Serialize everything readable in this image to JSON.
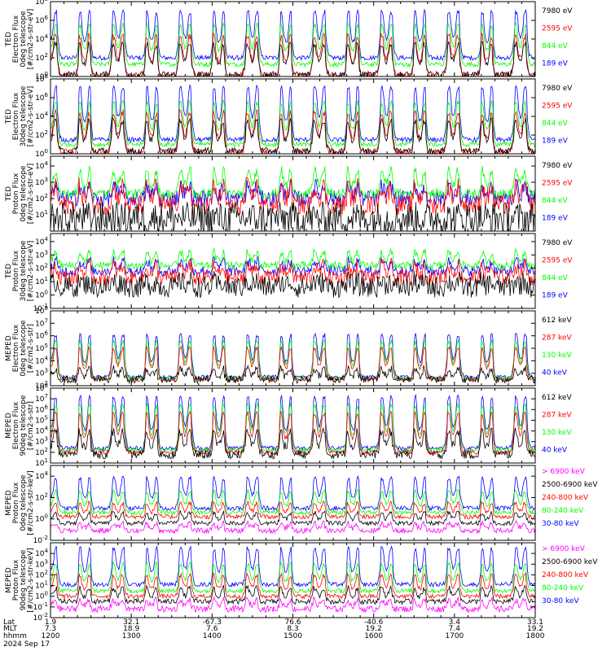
{
  "figure": {
    "date": "2024 Sep 17",
    "footer_rows": [
      {
        "label": "Lat",
        "values": [
          "1.9",
          "32.1",
          "-67.3",
          "76.6",
          "-40.6",
          "3.4",
          "33.1"
        ]
      },
      {
        "label": "MLT",
        "values": [
          "7.3",
          "18.9",
          "7.6",
          "8.3",
          "19.2",
          "7.4",
          "19.2"
        ]
      },
      {
        "label": "hhmm",
        "values": [
          "1200",
          "1300",
          "1400",
          "1500",
          "1600",
          "1700",
          "1800"
        ]
      }
    ]
  },
  "colors": {
    "black": "#000000",
    "blue": "#0000ff",
    "red": "#ff0000",
    "green": "#00ff00",
    "magenta": "#ff00ff"
  },
  "chart_data": [
    {
      "type": "line",
      "ylabel": [
        "TED",
        "Electron Flux",
        "0deg telescope",
        "[#/cm2-s-str-eV]"
      ],
      "log_scale": true,
      "ylim_exp": [
        0,
        8
      ],
      "y_ticks": [
        {
          "exp": 0,
          "label": "10^0"
        },
        {
          "exp": 2,
          "label": "10^2"
        },
        {
          "exp": 4,
          "label": "10^4"
        },
        {
          "exp": 6,
          "label": "10^6"
        },
        {
          "exp": 8,
          "label": "10^8"
        }
      ],
      "x_hours": [
        12,
        18
      ],
      "series": [
        {
          "name": "7980 eV",
          "color": "#000000",
          "base": 0.2,
          "amp": 2.3,
          "noise": 0.35
        },
        {
          "name": "2595 eV",
          "color": "#ff0000",
          "base": 0.1,
          "amp": 3.0,
          "noise": 0.35
        },
        {
          "name": "844 eV",
          "color": "#00ff00",
          "base": 1.3,
          "amp": 3.0,
          "noise": 0.25
        },
        {
          "name": "189 eV",
          "color": "#0000ff",
          "base": 2.0,
          "amp": 3.5,
          "noise": 0.25
        }
      ],
      "legend": [
        "7980 eV",
        "2595 eV",
        "844 eV",
        "189 eV"
      ]
    },
    {
      "type": "line",
      "ylabel": [
        "TED",
        "Electron Flux",
        "30deg telescope",
        "[#/cm2-s-str-eV]"
      ],
      "log_scale": true,
      "ylim_exp": [
        0,
        8
      ],
      "y_ticks": [
        {
          "exp": 0,
          "label": "10^0"
        },
        {
          "exp": 2,
          "label": "10^2"
        },
        {
          "exp": 4,
          "label": "10^4"
        },
        {
          "exp": 6,
          "label": "10^6"
        },
        {
          "exp": 8,
          "label": "10^8"
        }
      ],
      "x_hours": [
        12,
        18
      ],
      "series": [
        {
          "name": "7980 eV",
          "color": "#000000",
          "base": 0.3,
          "amp": 2.3,
          "noise": 0.35
        },
        {
          "name": "2595 eV",
          "color": "#ff0000",
          "base": 0.2,
          "amp": 3.0,
          "noise": 0.35
        },
        {
          "name": "844 eV",
          "color": "#00ff00",
          "base": 1.0,
          "amp": 3.2,
          "noise": 0.25
        },
        {
          "name": "189 eV",
          "color": "#0000ff",
          "base": 1.5,
          "amp": 4.0,
          "noise": 0.25
        }
      ],
      "legend": [
        "7980 eV",
        "2595 eV",
        "844 eV",
        "189 eV"
      ]
    },
    {
      "type": "line",
      "ylabel": [
        "TED",
        "Proton Flux",
        "0deg telescope",
        "[#/cm2-s-str-eV]"
      ],
      "log_scale": true,
      "ylim_exp": [
        0,
        4.6
      ],
      "y_ticks": [
        {
          "exp": 1,
          "label": "10^1"
        },
        {
          "exp": 2,
          "label": "10^2"
        },
        {
          "exp": 3,
          "label": "10^3"
        },
        {
          "exp": 4,
          "label": "10^4"
        }
      ],
      "x_hours": [
        12,
        18
      ],
      "series": [
        {
          "name": "7980 eV",
          "color": "#000000",
          "base": 0.8,
          "amp": 0.0,
          "noise": 1.0
        },
        {
          "name": "2595 eV",
          "color": "#ff0000",
          "base": 1.6,
          "amp": 0.8,
          "noise": 0.6
        },
        {
          "name": "844 eV",
          "color": "#00ff00",
          "base": 2.3,
          "amp": 1.0,
          "noise": 0.3
        },
        {
          "name": "189 eV",
          "color": "#0000ff",
          "base": 2.0,
          "amp": 0.5,
          "noise": 0.5
        }
      ],
      "legend": [
        "7980 eV",
        "2595 eV",
        "844 eV",
        "189 eV"
      ]
    },
    {
      "type": "line",
      "ylabel": [
        "TED",
        "Proton Flux",
        "30deg telescope",
        "[#/cm2-s-str-eV]"
      ],
      "log_scale": true,
      "ylim_exp": [
        -1,
        4.6
      ],
      "y_ticks": [
        {
          "exp": -1,
          "label": "10^-1"
        },
        {
          "exp": 0,
          "label": "10^0"
        },
        {
          "exp": 1,
          "label": "10^1"
        },
        {
          "exp": 2,
          "label": "10^2"
        },
        {
          "exp": 3,
          "label": "10^3"
        },
        {
          "exp": 4,
          "label": "10^4"
        }
      ],
      "x_hours": [
        12,
        18
      ],
      "series": [
        {
          "name": "7980 eV",
          "color": "#000000",
          "base": 0.6,
          "amp": 0.3,
          "noise": 0.8
        },
        {
          "name": "2595 eV",
          "color": "#ff0000",
          "base": 1.3,
          "amp": 0.6,
          "noise": 0.6
        },
        {
          "name": "844 eV",
          "color": "#00ff00",
          "base": 2.2,
          "amp": 0.7,
          "noise": 0.3
        },
        {
          "name": "189 eV",
          "color": "#0000ff",
          "base": 1.8,
          "amp": 0.5,
          "noise": 0.4
        }
      ],
      "legend": [
        "7980 eV",
        "2595 eV",
        "844 eV",
        "189 eV"
      ]
    },
    {
      "type": "line",
      "ylabel": [
        "MEPED",
        "Electron Flux",
        "0deg telescope",
        "[#/cm2-s-str]"
      ],
      "log_scale": true,
      "ylim_exp": [
        2,
        8
      ],
      "y_ticks": [
        {
          "exp": 2,
          "label": "10^2"
        },
        {
          "exp": 3,
          "label": "10^3"
        },
        {
          "exp": 4,
          "label": "10^4"
        },
        {
          "exp": 5,
          "label": "10^5"
        },
        {
          "exp": 6,
          "label": "10^6"
        },
        {
          "exp": 7,
          "label": "10^7"
        },
        {
          "exp": 8,
          "label": "10^8"
        }
      ],
      "x_hours": [
        12,
        18
      ],
      "series": [
        {
          "name": "612 keV",
          "color": "#000000",
          "base": 2.5,
          "amp": 0.6,
          "noise": 0.3
        },
        {
          "name": "287 keV",
          "color": "#ff0000",
          "base": 2.5,
          "amp": 1.8,
          "noise": 0.15
        },
        {
          "name": "130 keV",
          "color": "#00ff00",
          "base": 2.6,
          "amp": 2.1,
          "noise": 0.15
        },
        {
          "name": "40 keV",
          "color": "#0000ff",
          "base": 2.7,
          "amp": 2.4,
          "noise": 0.15
        }
      ],
      "legend": [
        "612 keV",
        "287 keV",
        "130 keV",
        "40 keV"
      ]
    },
    {
      "type": "line",
      "ylabel": [
        "MEPED",
        "Electron Flux",
        "90deg telescope",
        "[#/cm2-s-str]"
      ],
      "log_scale": true,
      "ylim_exp": [
        1,
        8
      ],
      "y_ticks": [
        {
          "exp": 1,
          "label": "10^1"
        },
        {
          "exp": 2,
          "label": "10^2"
        },
        {
          "exp": 3,
          "label": "10^3"
        },
        {
          "exp": 4,
          "label": "10^4"
        },
        {
          "exp": 5,
          "label": "10^5"
        },
        {
          "exp": 6,
          "label": "10^6"
        },
        {
          "exp": 7,
          "label": "10^7"
        },
        {
          "exp": 8,
          "label": "10^8"
        }
      ],
      "x_hours": [
        12,
        18
      ],
      "series": [
        {
          "name": "612 keV",
          "color": "#000000",
          "base": 1.8,
          "amp": 1.5,
          "noise": 0.4
        },
        {
          "name": "287 keV",
          "color": "#ff0000",
          "base": 2.0,
          "amp": 2.6,
          "noise": 0.2
        },
        {
          "name": "130 keV",
          "color": "#00ff00",
          "base": 2.2,
          "amp": 3.0,
          "noise": 0.2
        },
        {
          "name": "40 keV",
          "color": "#0000ff",
          "base": 2.4,
          "amp": 3.4,
          "noise": 0.2
        }
      ],
      "legend": [
        "612 keV",
        "287 keV",
        "130 keV",
        "40 keV"
      ]
    },
    {
      "type": "line",
      "ylabel": [
        "MEPED",
        "Proton Flux",
        "0deg telescope",
        "[#/cm2-s-str-keV]"
      ],
      "log_scale": true,
      "ylim_exp": [
        -2,
        5
      ],
      "y_ticks": [
        {
          "exp": -2,
          "label": "10^-2"
        },
        {
          "exp": 0,
          "label": "10^0"
        },
        {
          "exp": 2,
          "label": "10^2"
        },
        {
          "exp": 4,
          "label": "10^4"
        }
      ],
      "x_hours": [
        12,
        18
      ],
      "series": [
        {
          "name": "> 6900 keV",
          "color": "#ff00ff",
          "base": -1.1,
          "amp": 0.5,
          "noise": 0.25
        },
        {
          "name": "2500-6900 keV",
          "color": "#000000",
          "base": -0.4,
          "amp": 0.7,
          "noise": 0.2
        },
        {
          "name": "240-800 keV",
          "color": "#ff0000",
          "base": 0.2,
          "amp": 0.9,
          "noise": 0.2
        },
        {
          "name": "80-240 keV",
          "color": "#00ff00",
          "base": 0.6,
          "amp": 1.4,
          "noise": 0.2
        },
        {
          "name": "30-80 keV",
          "color": "#0000ff",
          "base": 1.0,
          "amp": 2.0,
          "noise": 0.2
        }
      ],
      "legend": [
        "> 6900 keV",
        "2500-6900 keV",
        "240-800 keV",
        "80-240 keV",
        "30-80 keV"
      ]
    },
    {
      "type": "line",
      "ylabel": [
        "MEPED",
        "Proton Flux",
        "90deg telescope",
        "[#/cm2-s-str-keV]"
      ],
      "log_scale": true,
      "ylim_exp": [
        -2,
        5
      ],
      "y_ticks": [
        {
          "exp": -2,
          "label": "10^-2"
        },
        {
          "exp": -1,
          "label": "10^-1"
        },
        {
          "exp": 0,
          "label": "10^0"
        },
        {
          "exp": 1,
          "label": "10^1"
        },
        {
          "exp": 2,
          "label": "10^2"
        },
        {
          "exp": 3,
          "label": "10^3"
        },
        {
          "exp": 4,
          "label": "10^4"
        }
      ],
      "x_hours": [
        12,
        18
      ],
      "series": [
        {
          "name": "> 6900 keV",
          "color": "#ff00ff",
          "base": -1.2,
          "amp": 0.6,
          "noise": 0.3
        },
        {
          "name": "2500-6900 keV",
          "color": "#000000",
          "base": -0.5,
          "amp": 0.9,
          "noise": 0.25
        },
        {
          "name": "240-800 keV",
          "color": "#ff0000",
          "base": 0.0,
          "amp": 1.4,
          "noise": 0.2
        },
        {
          "name": "80-240 keV",
          "color": "#00ff00",
          "base": 0.5,
          "amp": 1.8,
          "noise": 0.2
        },
        {
          "name": "30-80 keV",
          "color": "#0000ff",
          "base": 1.1,
          "amp": 2.4,
          "noise": 0.2
        }
      ],
      "legend": [
        "> 6900 keV",
        "2500-6900 keV",
        "240-800 keV",
        "80-240 keV",
        "30-80 keV"
      ]
    }
  ]
}
